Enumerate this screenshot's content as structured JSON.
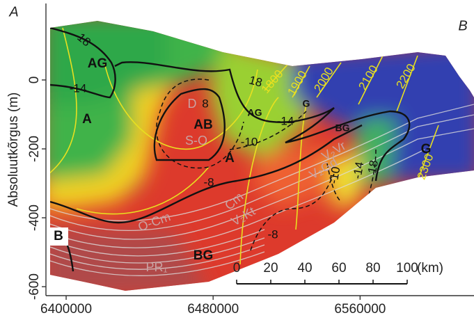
{
  "chart_data": {
    "type": "cross-section",
    "ylabel": "Absoluutkõrgus (m)",
    "xlim": [
      6389000,
      6622000
    ],
    "ylim": [
      -626,
      222
    ],
    "xticks": [
      6400000,
      6480000,
      6560000
    ],
    "yticks": [
      0,
      -200,
      -400,
      -600
    ],
    "scale_bar": {
      "ticks": [
        0,
        20,
        40,
        60,
        80,
        100
      ],
      "unit": "(km)"
    },
    "annotations": [
      "A",
      "B",
      "AG",
      "A",
      "AB",
      "A",
      "AG",
      "G",
      "BG",
      "G",
      "B",
      "BG",
      "18",
      "-14",
      "8",
      "18",
      "-14",
      "-10",
      "-8",
      "-10",
      "-14",
      "18",
      "-8",
      "1800",
      "1900",
      "2000",
      "2100",
      "2200",
      "2300",
      "D",
      "S-O",
      "O-Cm",
      "Cm",
      "V₂Kt",
      "V₂Gd",
      "V₂Vr",
      "PR₁"
    ]
  }
}
